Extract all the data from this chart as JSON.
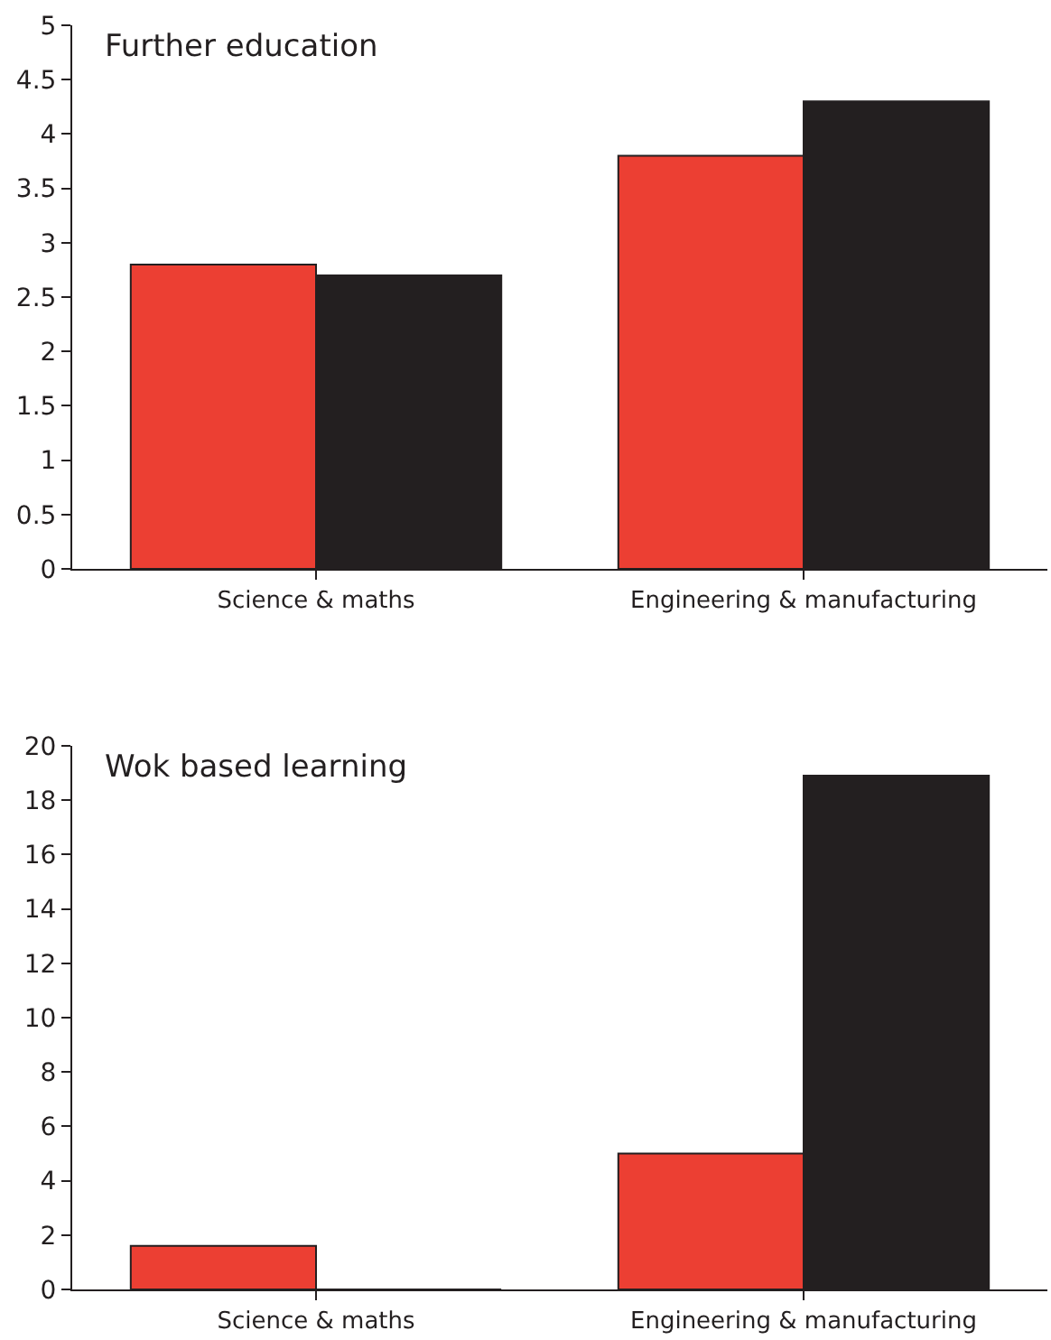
{
  "chart_data": [
    {
      "type": "bar",
      "title": "Further education",
      "categories": [
        "Science & maths",
        "Engineering & manufacturing"
      ],
      "series": [
        {
          "color": "#ec3f33",
          "values": [
            2.8,
            3.8
          ]
        },
        {
          "color": "#231f20",
          "values": [
            2.7,
            4.3
          ]
        }
      ],
      "ylim": [
        0,
        5
      ],
      "yticks": [
        0,
        0.5,
        1,
        1.5,
        2,
        2.5,
        3,
        3.5,
        4,
        4.5,
        5
      ]
    },
    {
      "type": "bar",
      "title": "Wok based learning",
      "categories": [
        "Science & maths",
        "Engineering & manufacturing"
      ],
      "series": [
        {
          "color": "#ec3f33",
          "values": [
            1.6,
            5.0
          ]
        },
        {
          "color": "#231f20",
          "values": [
            0,
            18.9
          ]
        }
      ],
      "ylim": [
        0,
        20
      ],
      "yticks": [
        0,
        2,
        4,
        6,
        8,
        10,
        12,
        14,
        16,
        18,
        20
      ]
    }
  ]
}
